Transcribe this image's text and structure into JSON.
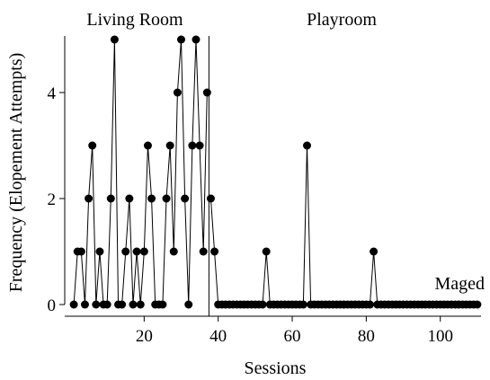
{
  "chart_data": {
    "type": "line",
    "x_label": "Sessions",
    "y_label": "Frequency (Elopement Attempts)",
    "annotation": "Maged",
    "xlim": [
      0,
      111
    ],
    "ylim": [
      0,
      5
    ],
    "xticks": [
      20,
      40,
      60,
      80,
      100
    ],
    "yticks": [
      0,
      2,
      4
    ],
    "phase_change": 37.5,
    "color": "#000000",
    "series": [
      {
        "name": "Living Room",
        "x": [
          1,
          2,
          3,
          4,
          5,
          6,
          7,
          8,
          9,
          10,
          11,
          12,
          13,
          14,
          15,
          16,
          17,
          18,
          19,
          20,
          21,
          22,
          23,
          24,
          25,
          26,
          27,
          28,
          29,
          30,
          31,
          32,
          33,
          34,
          35,
          36,
          37
        ],
        "values": [
          0,
          1,
          1,
          0,
          2,
          3,
          0,
          1,
          0,
          0,
          2,
          5,
          0,
          0,
          1,
          2,
          0,
          1,
          0,
          1,
          3,
          2,
          0,
          0,
          0,
          2,
          3,
          1,
          4,
          5,
          2,
          0,
          3,
          5,
          3,
          1,
          4
        ]
      },
      {
        "name": "Playroom",
        "x": [
          38,
          39,
          40,
          41,
          42,
          43,
          44,
          45,
          46,
          47,
          48,
          49,
          50,
          51,
          52,
          53,
          54,
          55,
          56,
          57,
          58,
          59,
          60,
          61,
          62,
          63,
          64,
          65,
          66,
          67,
          68,
          69,
          70,
          71,
          72,
          73,
          74,
          75,
          76,
          77,
          78,
          79,
          80,
          81,
          82,
          83,
          84,
          85,
          86,
          87,
          88,
          89,
          90,
          91,
          92,
          93,
          94,
          95,
          96,
          97,
          98,
          99,
          100,
          101,
          102,
          103,
          104,
          105,
          106,
          107,
          108,
          109,
          110
        ],
        "values": [
          2,
          1,
          0,
          0,
          0,
          0,
          0,
          0,
          0,
          0,
          0,
          0,
          0,
          0,
          0,
          1,
          0,
          0,
          0,
          0,
          0,
          0,
          0,
          0,
          0,
          0,
          3,
          0,
          0,
          0,
          0,
          0,
          0,
          0,
          0,
          0,
          0,
          0,
          0,
          0,
          0,
          0,
          0,
          0,
          1,
          0,
          0,
          0,
          0,
          0,
          0,
          0,
          0,
          0,
          0,
          0,
          0,
          0,
          0,
          0,
          0,
          0,
          0,
          0,
          0,
          0,
          0,
          0,
          0,
          0,
          0,
          0,
          0
        ]
      }
    ]
  }
}
